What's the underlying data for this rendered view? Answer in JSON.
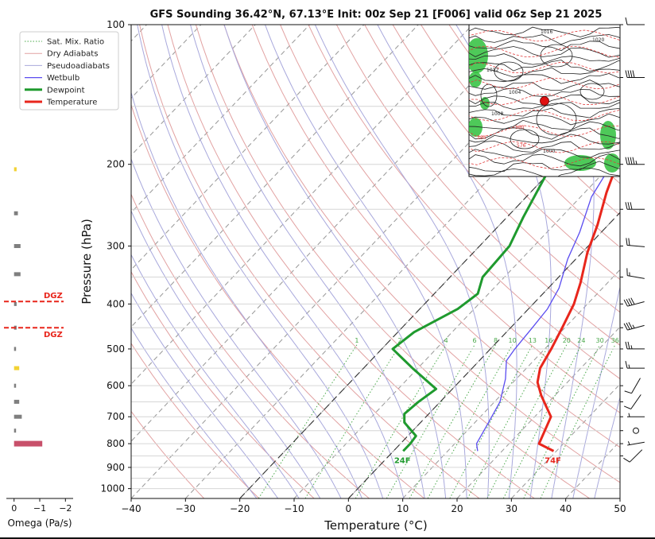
{
  "chart_data": {
    "type": "line",
    "title": "GFS Sounding 36.42°N, 67.13°E Init: 00z Sep 21 [F006] valid 06z Sep 21 2025",
    "xlabel": "Temperature (°C)",
    "ylabel": "Pressure (hPa)",
    "xlim": [
      -40,
      50
    ],
    "ylim": [
      1050,
      100
    ],
    "y_scale": "log",
    "x_ticks": [
      -40,
      -30,
      -20,
      -10,
      0,
      10,
      20,
      30,
      40,
      50
    ],
    "y_ticks": [
      100,
      200,
      300,
      400,
      500,
      600,
      700,
      800,
      900,
      1000
    ],
    "skew": true,
    "grid": true,
    "legend": {
      "position": "top-left",
      "entries": [
        "Sat. Mix. Ratio",
        "Dry Adiabats",
        "Pseudoadiabats",
        "Wetbulb",
        "Dewpoint",
        "Temperature"
      ]
    },
    "series": [
      {
        "name": "Temperature",
        "color": "#e8261c",
        "points": [
          [
            29.5,
            830
          ],
          [
            25.5,
            800
          ],
          [
            24.3,
            750
          ],
          [
            23.0,
            700
          ],
          [
            17.5,
            630
          ],
          [
            14.5,
            590
          ],
          [
            12.5,
            550
          ],
          [
            11.2,
            500
          ],
          [
            9.5,
            450
          ],
          [
            7.5,
            400
          ],
          [
            5.0,
            360
          ],
          [
            1.0,
            310
          ],
          [
            -2.0,
            270
          ],
          [
            -6.0,
            230
          ],
          [
            -9.0,
            200
          ],
          [
            -13.0,
            165
          ],
          [
            -17.0,
            135
          ],
          [
            -18.0,
            130
          ],
          [
            -18.0,
            100
          ]
        ]
      },
      {
        "name": "Dewpoint",
        "color": "#1f9a2e",
        "points": [
          [
            1.8,
            830
          ],
          [
            1.8,
            800
          ],
          [
            1.5,
            770
          ],
          [
            -3.0,
            720
          ],
          [
            -4.5,
            690
          ],
          [
            -4.0,
            650
          ],
          [
            -3.0,
            610
          ],
          [
            -11.0,
            550
          ],
          [
            -18.0,
            500
          ],
          [
            -17.0,
            460
          ],
          [
            -13.0,
            410
          ],
          [
            -12.0,
            380
          ],
          [
            -14.0,
            350
          ],
          [
            -14.5,
            300
          ],
          [
            -17.0,
            260
          ],
          [
            -21.0,
            200
          ],
          [
            -23.5,
            160
          ],
          [
            -25.0,
            130
          ],
          [
            -22.0,
            100
          ]
        ]
      },
      {
        "name": "Wetbulb",
        "color": "#5a4cf0",
        "points": [
          [
            15.5,
            830
          ],
          [
            14.0,
            800
          ],
          [
            12.5,
            720
          ],
          [
            11.0,
            650
          ],
          [
            8.0,
            580
          ],
          [
            5.0,
            530
          ],
          [
            4.5,
            500
          ],
          [
            4.0,
            450
          ],
          [
            3.5,
            410
          ],
          [
            2.0,
            370
          ],
          [
            -1.5,
            320
          ],
          [
            -4.0,
            280
          ],
          [
            -8.0,
            235
          ],
          [
            -10.0,
            200
          ]
        ]
      }
    ],
    "surface_labels": {
      "temperature": "74F",
      "dewpoint": "24F"
    },
    "mixing_ratio_labels": [
      "1",
      "2",
      "4",
      "6",
      "8",
      "10",
      "13",
      "16",
      "20",
      "24",
      "30",
      "36"
    ],
    "mixing_ratio_values": [
      1,
      2,
      4,
      6,
      8,
      10,
      13,
      16,
      20,
      24,
      30,
      36
    ],
    "omega": {
      "xlabel": "Omega (Pa/s)",
      "x_ticks": [
        "0",
        "−1",
        "−2"
      ],
      "xlim": [
        0.3,
        -2.3
      ],
      "bars": [
        {
          "p": 205,
          "value": -0.1,
          "color": "#f2d233"
        },
        {
          "p": 255,
          "value": -0.15,
          "color": "#7f7f7f"
        },
        {
          "p": 300,
          "value": -0.25,
          "color": "#7f7f7f"
        },
        {
          "p": 345,
          "value": -0.25,
          "color": "#7f7f7f"
        },
        {
          "p": 400,
          "value": -0.1,
          "color": "#7f7f7f"
        },
        {
          "p": 450,
          "value": -0.1,
          "color": "#7f7f7f"
        },
        {
          "p": 500,
          "value": -0.05,
          "color": "#7f7f7f"
        },
        {
          "p": 550,
          "value": -0.2,
          "color": "#f2d233"
        },
        {
          "p": 600,
          "value": -0.05,
          "color": "#7f7f7f"
        },
        {
          "p": 650,
          "value": -0.2,
          "color": "#7f7f7f"
        },
        {
          "p": 700,
          "value": -0.3,
          "color": "#7f7f7f"
        },
        {
          "p": 750,
          "value": -0.05,
          "color": "#7f7f7f"
        },
        {
          "p": 800,
          "value": -1.1,
          "color": "#c8506a"
        }
      ],
      "dgz": [
        {
          "label": "DGZ",
          "p": 395
        },
        {
          "label": "DGZ",
          "p": 450
        }
      ]
    },
    "wind_barbs": [
      {
        "p": 100,
        "speed_kt": 10,
        "dir_deg": 270
      },
      {
        "p": 130,
        "speed_kt": 40,
        "dir_deg": 270
      },
      {
        "p": 200,
        "speed_kt": 45,
        "dir_deg": 270
      },
      {
        "p": 250,
        "speed_kt": 30,
        "dir_deg": 270
      },
      {
        "p": 300,
        "speed_kt": 20,
        "dir_deg": 275
      },
      {
        "p": 350,
        "speed_kt": 15,
        "dir_deg": 280
      },
      {
        "p": 400,
        "speed_kt": 40,
        "dir_deg": 255
      },
      {
        "p": 450,
        "speed_kt": 35,
        "dir_deg": 255
      },
      {
        "p": 500,
        "speed_kt": 25,
        "dir_deg": 270
      },
      {
        "p": 550,
        "speed_kt": 15,
        "dir_deg": 270
      },
      {
        "p": 600,
        "speed_kt": 10,
        "dir_deg": 210
      },
      {
        "p": 650,
        "speed_kt": 10,
        "dir_deg": 215
      },
      {
        "p": 700,
        "speed_kt": 5,
        "dir_deg": 270
      },
      {
        "p": 750,
        "speed_kt": 0,
        "dir_deg": 0
      },
      {
        "p": 800,
        "speed_kt": 5,
        "dir_deg": 260
      },
      {
        "p": 850,
        "speed_kt": 10,
        "dir_deg": 225
      }
    ],
    "inset_map": {
      "contour_labels": [
        "1016",
        "1020",
        "1012",
        "1008",
        "1004",
        "1000",
        "584",
        "580",
        "576"
      ],
      "location_marker_color": "#e01010"
    }
  }
}
